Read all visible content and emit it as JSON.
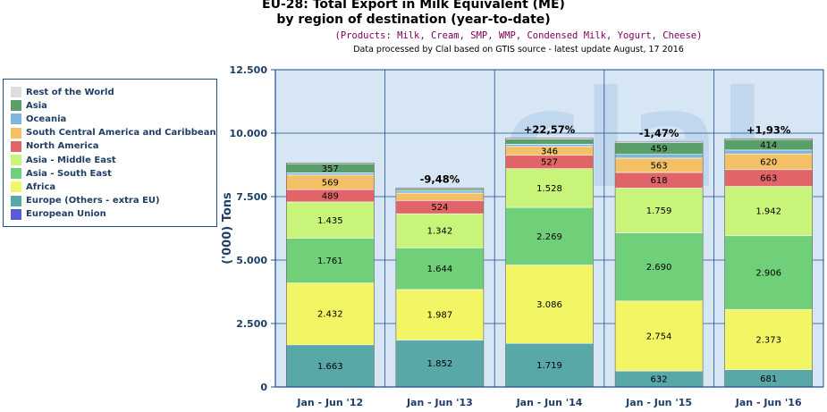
{
  "header": {
    "title_line1": "EU-28: Total Export in Milk Equivalent (ME)",
    "title_line2": "by region of destination (year-to-date)",
    "products": "(Products: Milk, Cream, SMP, WMP, Condensed Milk, Yogurt, Cheese)",
    "source": "Data processed by Clal based on GTIS source - latest update August, 17 2016"
  },
  "legend": {
    "items": [
      {
        "label": "Rest of the World",
        "color": "#dddddd"
      },
      {
        "label": "Asia",
        "color": "#5a9e6a"
      },
      {
        "label": "Oceania",
        "color": "#7eb6e0"
      },
      {
        "label": "South Central America and Caribbean",
        "color": "#f4c065"
      },
      {
        "label": "North America",
        "color": "#e06468"
      },
      {
        "label": "Asia - Middle East",
        "color": "#c8f47a"
      },
      {
        "label": "Asia - South East",
        "color": "#70d07a"
      },
      {
        "label": "Africa",
        "color": "#f2f664"
      },
      {
        "label": "Europe (Others - extra EU)",
        "color": "#58a8a8"
      },
      {
        "label": "European Union",
        "color": "#5a5ad6"
      }
    ]
  },
  "chart_data": {
    "type": "bar",
    "stacked": true,
    "watermark": "clal",
    "ylabel": "('000) Tons",
    "ylim": [
      0,
      12500
    ],
    "yticks": [
      0,
      2500,
      5000,
      7500,
      10000,
      12500
    ],
    "ytick_labels": [
      "0",
      "2.500",
      "5.000",
      "7.500",
      "10.000",
      "12.500"
    ],
    "categories": [
      "Jan - Jun '12",
      "Jan - Jun '13",
      "Jan - Jun '14",
      "Jan - Jun '15",
      "Jan - Jun '16"
    ],
    "change_labels": [
      "",
      "-9,48%",
      "+22,57%",
      "-1,47%",
      "+1,93%"
    ],
    "series": [
      {
        "name": "Europe (Others - extra EU)",
        "color": "#58a8a8",
        "values": [
          1663,
          1852,
          1719,
          632,
          681
        ],
        "labels": [
          "1.663",
          "1.852",
          "1.719",
          "632",
          "681"
        ]
      },
      {
        "name": "Africa",
        "color": "#f2f664",
        "values": [
          2432,
          1987,
          3086,
          2754,
          2373
        ],
        "labels": [
          "2.432",
          "1.987",
          "3.086",
          "2.754",
          "2.373"
        ]
      },
      {
        "name": "Asia - South East",
        "color": "#70d07a",
        "values": [
          1761,
          1644,
          2269,
          2690,
          2906
        ],
        "labels": [
          "1.761",
          "1.644",
          "2.269",
          "2.690",
          "2.906"
        ]
      },
      {
        "name": "Asia - Middle East",
        "color": "#c8f47a",
        "values": [
          1435,
          1342,
          1528,
          1759,
          1942
        ],
        "labels": [
          "1.435",
          "1.342",
          "1.528",
          "1.759",
          "1.942"
        ]
      },
      {
        "name": "North America",
        "color": "#e06468",
        "values": [
          489,
          524,
          527,
          618,
          663
        ],
        "labels": [
          "489",
          "524",
          "527",
          "618",
          "663"
        ]
      },
      {
        "name": "South Central America and Caribbean",
        "color": "#f4c065",
        "values": [
          569,
          290,
          346,
          563,
          620
        ],
        "labels": [
          "569",
          "",
          "346",
          "563",
          "620"
        ]
      },
      {
        "name": "Oceania",
        "color": "#7eb6e0",
        "values": [
          90,
          90,
          90,
          150,
          150
        ],
        "labels": [
          "",
          "",
          "",
          "",
          ""
        ]
      },
      {
        "name": "Asia",
        "color": "#5a9e6a",
        "values": [
          357,
          80,
          200,
          459,
          414
        ],
        "labels": [
          "357",
          "",
          "",
          "459",
          "414"
        ]
      },
      {
        "name": "Rest of the World",
        "color": "#dddddd",
        "values": [
          25,
          20,
          30,
          25,
          30
        ],
        "labels": [
          "",
          "",
          "",
          "",
          ""
        ]
      }
    ]
  }
}
